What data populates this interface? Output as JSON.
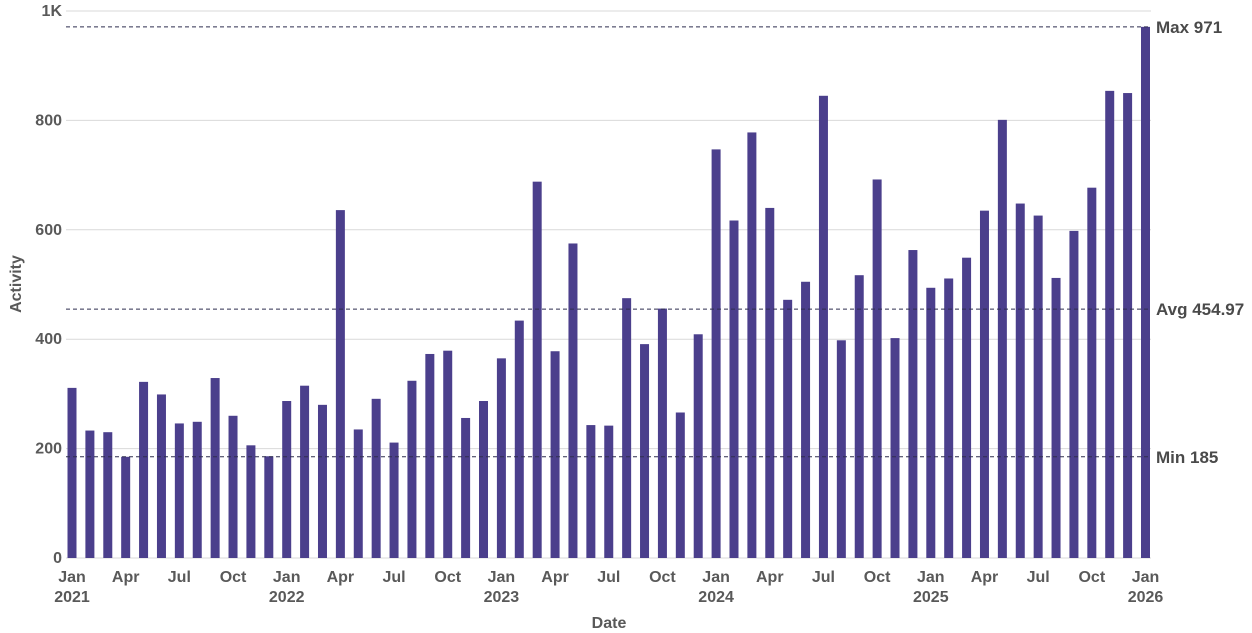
{
  "chart_data": {
    "type": "bar",
    "xlabel": "Date",
    "ylabel": "Activity",
    "ylim": [
      0,
      1000
    ],
    "y_ticks": [
      {
        "value": 0,
        "label": "0"
      },
      {
        "value": 200,
        "label": "200"
      },
      {
        "value": 400,
        "label": "400"
      },
      {
        "value": 600,
        "label": "600"
      },
      {
        "value": 800,
        "label": "800"
      },
      {
        "value": 1000,
        "label": "1K"
      }
    ],
    "x_ticks": [
      {
        "date": "2021-01",
        "label": "Jan",
        "year": "2021"
      },
      {
        "date": "2021-04",
        "label": "Apr"
      },
      {
        "date": "2021-07",
        "label": "Jul"
      },
      {
        "date": "2021-10",
        "label": "Oct"
      },
      {
        "date": "2022-01",
        "label": "Jan",
        "year": "2022"
      },
      {
        "date": "2022-04",
        "label": "Apr"
      },
      {
        "date": "2022-07",
        "label": "Jul"
      },
      {
        "date": "2022-10",
        "label": "Oct"
      },
      {
        "date": "2023-01",
        "label": "Jan",
        "year": "2023"
      },
      {
        "date": "2023-04",
        "label": "Apr"
      },
      {
        "date": "2023-07",
        "label": "Jul"
      },
      {
        "date": "2023-10",
        "label": "Oct"
      },
      {
        "date": "2024-01",
        "label": "Jan",
        "year": "2024"
      },
      {
        "date": "2024-04",
        "label": "Apr"
      },
      {
        "date": "2024-07",
        "label": "Jul"
      },
      {
        "date": "2024-10",
        "label": "Oct"
      },
      {
        "date": "2025-01",
        "label": "Jan",
        "year": "2025"
      },
      {
        "date": "2025-04",
        "label": "Apr"
      },
      {
        "date": "2025-07",
        "label": "Jul"
      },
      {
        "date": "2025-10",
        "label": "Oct"
      },
      {
        "date": "2026-01",
        "label": "Jan",
        "year": "2026"
      }
    ],
    "categories": [
      "2021-01",
      "2021-02",
      "2021-03",
      "2021-04",
      "2021-05",
      "2021-06",
      "2021-07",
      "2021-08",
      "2021-09",
      "2021-10",
      "2021-11",
      "2021-12",
      "2022-01",
      "2022-02",
      "2022-03",
      "2022-04",
      "2022-05",
      "2022-06",
      "2022-07",
      "2022-08",
      "2022-09",
      "2022-10",
      "2022-11",
      "2022-12",
      "2023-01",
      "2023-02",
      "2023-03",
      "2023-04",
      "2023-05",
      "2023-06",
      "2023-07",
      "2023-08",
      "2023-09",
      "2023-10",
      "2023-11",
      "2023-12",
      "2024-01",
      "2024-02",
      "2024-03",
      "2024-04",
      "2024-05",
      "2024-06",
      "2024-07",
      "2024-08",
      "2024-09",
      "2024-10",
      "2024-11",
      "2024-12",
      "2025-01",
      "2025-02",
      "2025-03",
      "2025-04",
      "2025-05",
      "2025-06",
      "2025-07",
      "2025-08",
      "2025-09",
      "2025-10",
      "2025-11",
      "2025-12",
      "2026-01"
    ],
    "values": [
      311,
      233,
      230,
      185,
      322,
      299,
      246,
      249,
      329,
      260,
      206,
      186,
      287,
      315,
      280,
      636,
      235,
      291,
      211,
      324,
      373,
      379,
      256,
      287,
      365,
      434,
      688,
      378,
      575,
      243,
      242,
      475,
      391,
      456,
      266,
      409,
      747,
      617,
      778,
      640,
      472,
      505,
      845,
      398,
      517,
      692,
      402,
      563,
      494,
      511,
      549,
      635,
      801,
      648,
      626,
      512,
      598,
      677,
      854,
      850,
      971
    ],
    "reference_lines": [
      {
        "value": 971,
        "label": "Max 971"
      },
      {
        "value": 454.97,
        "label": "Avg 454.97"
      },
      {
        "value": 185,
        "label": "Min 185"
      }
    ],
    "bar_color": "#4b3f8c",
    "grid": true,
    "legend": "none"
  }
}
